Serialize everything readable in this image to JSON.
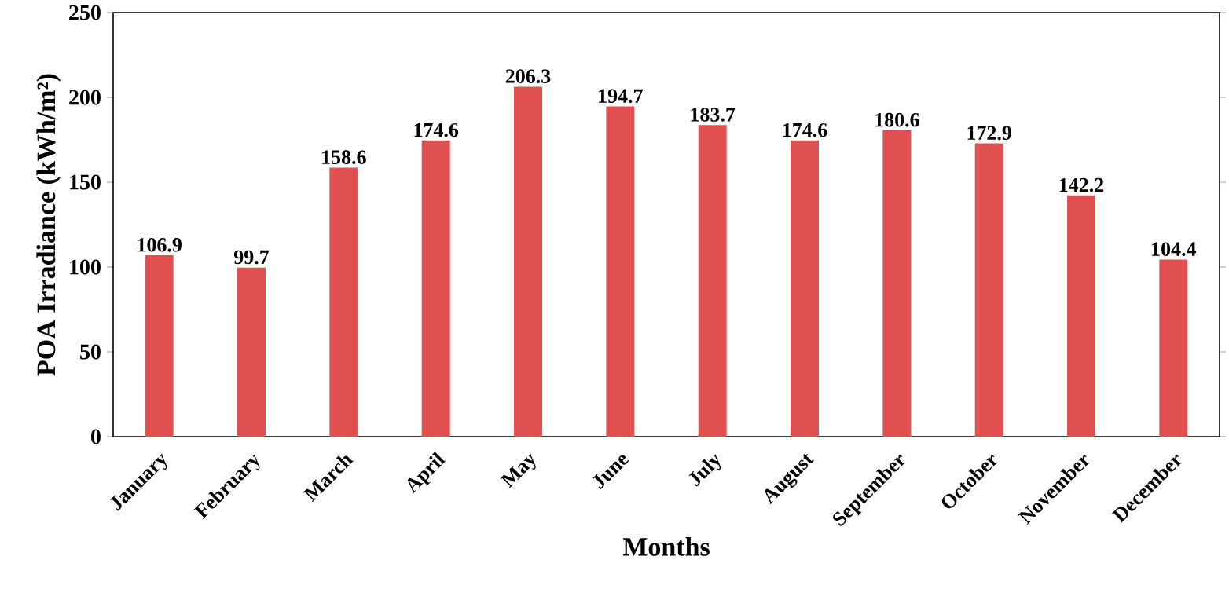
{
  "chart_data": {
    "type": "bar",
    "xlabel": "Months",
    "ylabel": "POA Irradiance  (kWh/m²)",
    "categories": [
      "January",
      "February",
      "March",
      "April",
      "May",
      "June",
      "July",
      "August",
      "September",
      "October",
      "November",
      "December"
    ],
    "values": [
      106.9,
      99.7,
      158.6,
      174.6,
      206.3,
      194.7,
      183.7,
      174.6,
      180.6,
      172.9,
      142.2,
      104.4
    ],
    "color": "#e05050",
    "ylim": [
      0,
      250
    ],
    "yticks": [
      0,
      50,
      100,
      150,
      200,
      250
    ],
    "data_labels": true
  }
}
